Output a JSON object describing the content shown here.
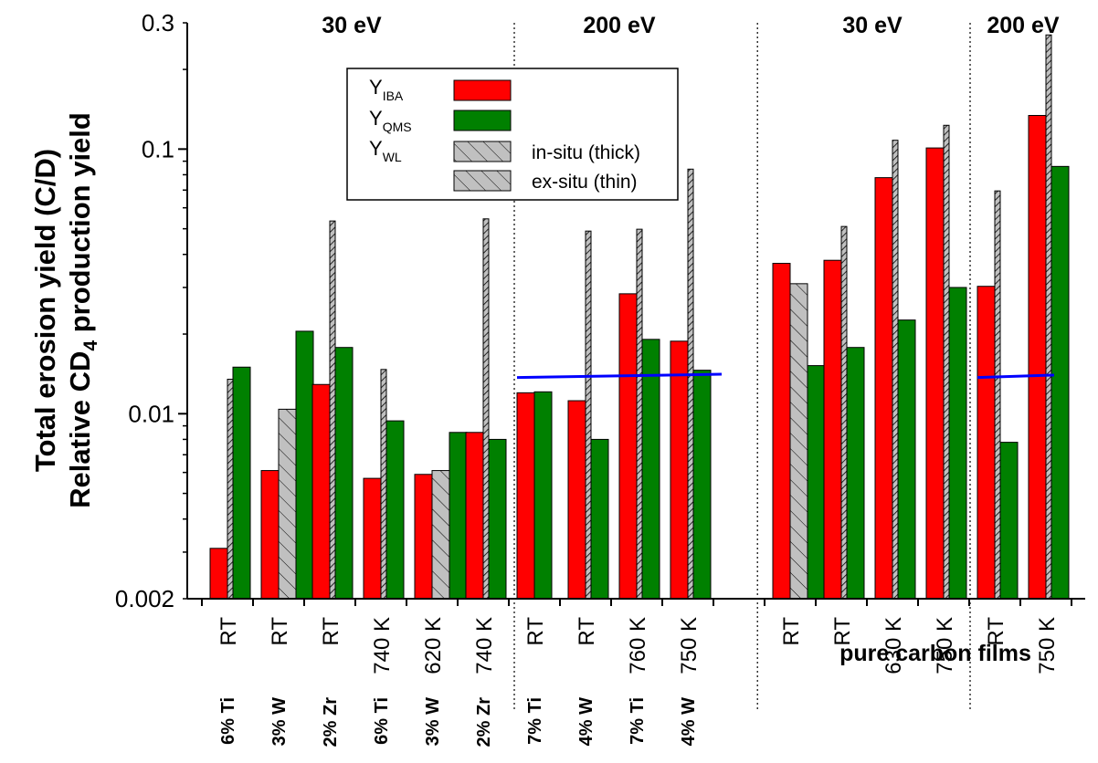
{
  "chart_data": {
    "type": "bar",
    "yscale": "log",
    "ylim": [
      0.002,
      0.3
    ],
    "yticks": [
      "0.002",
      "0.01",
      "0.1",
      "0.3"
    ],
    "ylabel_line1": "Total erosion yield (C/D)",
    "ylabel_line2_pre": "Relative CD",
    "ylabel_line2_sub": "4",
    "ylabel_line2_post": " production yield",
    "group_labels": [
      "30 eV",
      "200 eV",
      "30 eV",
      "200 eV"
    ],
    "materials_group_label": "pure carbon films",
    "colors": {
      "iba": "#ff0000",
      "qms": "#008000",
      "wl": "#c0c0c0",
      "fit": "#0000ff"
    },
    "legend": {
      "series": [
        {
          "key": "iba",
          "label_main": "Y",
          "label_sub": "IBA"
        },
        {
          "key": "qms",
          "label_main": "Y",
          "label_sub": "QMS"
        },
        {
          "key": "wl",
          "label_main": "Y",
          "label_sub": "WL"
        }
      ],
      "entries": [
        {
          "key": "iba",
          "text": ""
        },
        {
          "key": "qms",
          "text": ""
        },
        {
          "key": "insitu",
          "text": "in-situ (thick)"
        },
        {
          "key": "exsitu",
          "text": "ex-situ (thin)"
        }
      ]
    },
    "categories": [
      {
        "temp": "RT",
        "material": "6% Ti",
        "iba": 0.0031,
        "qms": 0.015,
        "wl": 0.0135,
        "wl_type": "insitu"
      },
      {
        "temp": "RT",
        "material": "3% W",
        "iba": 0.0061,
        "qms": 0.0205,
        "wl": 0.0104,
        "wl_type": "exsitu"
      },
      {
        "temp": "RT",
        "material": "2% Zr",
        "iba": 0.0129,
        "qms": 0.0178,
        "wl": 0.0535,
        "wl_type": "insitu"
      },
      {
        "temp": "740 K",
        "material": "6% Ti",
        "iba": 0.0057,
        "qms": 0.0094,
        "wl": 0.0147,
        "wl_type": "insitu"
      },
      {
        "temp": "620 K",
        "material": "3% W",
        "iba": 0.0059,
        "qms": 0.0085,
        "wl": 0.0061,
        "wl_type": "exsitu"
      },
      {
        "temp": "740 K",
        "material": "2% Zr",
        "iba": 0.0085,
        "qms": 0.008,
        "wl": 0.0545,
        "wl_type": "insitu"
      },
      {
        "temp": "RT",
        "material": "7% Ti",
        "iba": 0.012,
        "qms": 0.0121,
        "wl": null,
        "wl_type": null
      },
      {
        "temp": "RT",
        "material": "4% W",
        "iba": 0.0112,
        "qms": 0.008,
        "wl": 0.049,
        "wl_type": "insitu"
      },
      {
        "temp": "760 K",
        "material": "7% Ti",
        "iba": 0.0284,
        "qms": 0.0191,
        "wl": 0.0498,
        "wl_type": "insitu"
      },
      {
        "temp": "750 K",
        "material": "4% W",
        "iba": 0.0188,
        "qms": 0.0146,
        "wl": 0.084,
        "wl_type": "insitu"
      },
      {
        "temp": "",
        "material": "",
        "iba": null,
        "qms": null,
        "wl": null,
        "wl_type": null
      },
      {
        "temp": "RT",
        "material": "",
        "iba": 0.037,
        "qms": 0.0152,
        "wl": 0.031,
        "wl_type": "exsitu"
      },
      {
        "temp": "RT",
        "material": "",
        "iba": 0.038,
        "qms": 0.0178,
        "wl": 0.051,
        "wl_type": "insitu"
      },
      {
        "temp": "630 K",
        "material": "",
        "iba": 0.078,
        "qms": 0.0226,
        "wl": 0.108,
        "wl_type": "insitu"
      },
      {
        "temp": "750 K",
        "material": "",
        "iba": 0.101,
        "qms": 0.03,
        "wl": 0.123,
        "wl_type": "insitu"
      },
      {
        "temp": "RT",
        "material": "",
        "iba": 0.0303,
        "qms": 0.0078,
        "wl": 0.0695,
        "wl_type": "insitu"
      },
      {
        "temp": "750 K",
        "material": "",
        "iba": 0.134,
        "qms": 0.086,
        "wl": 0.27,
        "wl_type": "insitu"
      }
    ],
    "fit_lines": [
      {
        "x_from": 6.0,
        "x_to": 10.0,
        "y_from": 0.0137,
        "y_to": 0.0141
      },
      {
        "x_from": 15.0,
        "x_to": 16.5,
        "y_from": 0.0137,
        "y_to": 0.014
      }
    ]
  }
}
